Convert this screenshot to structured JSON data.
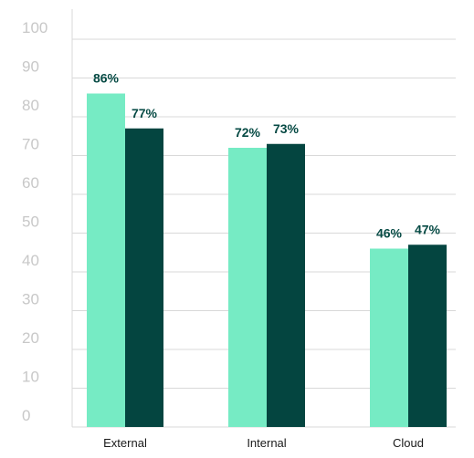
{
  "chart_data": {
    "type": "bar",
    "title": "",
    "xlabel": "",
    "ylabel": "",
    "ylim": [
      0,
      100
    ],
    "yticks": [
      "0",
      "10",
      "20",
      "30",
      "40",
      "50",
      "60",
      "70",
      "80",
      "90",
      "100"
    ],
    "categories": [
      "External",
      "Internal",
      "Cloud"
    ],
    "series": [
      {
        "values": [
          86,
          72,
          46
        ],
        "labels": [
          "86%",
          "72%",
          "46%"
        ],
        "color": "#76ebc4"
      },
      {
        "values": [
          77,
          73,
          47
        ],
        "labels": [
          "77%",
          "73%",
          "47%"
        ],
        "color": "#044540"
      }
    ],
    "grid": true,
    "legend": "none"
  }
}
